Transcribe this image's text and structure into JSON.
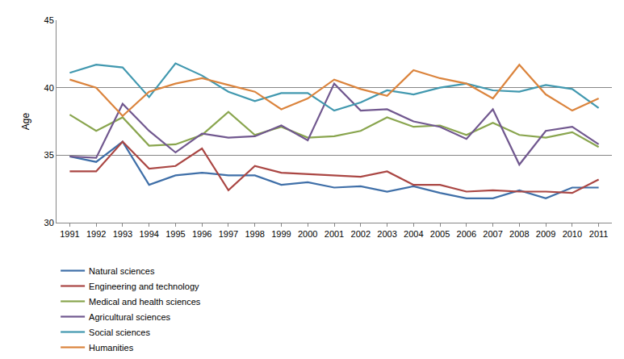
{
  "chart_data": {
    "type": "line",
    "y_label": "Age",
    "categories": [
      "1991",
      "1992",
      "1993",
      "1994",
      "1995",
      "1996",
      "1997",
      "1998",
      "1999",
      "2000",
      "2001",
      "2002",
      "2003",
      "2004",
      "2005",
      "2006",
      "2007",
      "2008",
      "2009",
      "2010",
      "2011"
    ],
    "series": [
      {
        "name": "Natural sciences",
        "color": "#3f6fa8",
        "values": [
          34.9,
          34.5,
          36.0,
          32.8,
          33.5,
          33.7,
          33.5,
          33.5,
          32.8,
          33.0,
          32.6,
          32.7,
          32.3,
          32.7,
          32.2,
          31.8,
          31.8,
          32.4,
          31.8,
          32.6,
          32.6
        ]
      },
      {
        "name": "Engineering and technology",
        "color": "#aa4643",
        "values": [
          33.8,
          33.8,
          36.0,
          34.0,
          34.2,
          35.5,
          32.4,
          34.2,
          33.7,
          33.6,
          33.5,
          33.4,
          33.8,
          32.8,
          32.8,
          32.3,
          32.4,
          32.3,
          32.3,
          32.2,
          33.2
        ]
      },
      {
        "name": "Medical and health sciences",
        "color": "#89a54e",
        "values": [
          38.0,
          36.8,
          37.8,
          35.7,
          35.8,
          36.5,
          38.2,
          36.5,
          37.1,
          36.3,
          36.4,
          36.8,
          37.8,
          37.1,
          37.2,
          36.5,
          37.4,
          36.5,
          36.3,
          36.7,
          35.6
        ]
      },
      {
        "name": "Agricultural sciences",
        "color": "#71588f",
        "values": [
          34.9,
          34.8,
          38.8,
          36.8,
          35.2,
          36.6,
          36.3,
          36.4,
          37.2,
          36.1,
          40.3,
          38.3,
          38.4,
          37.5,
          37.1,
          36.2,
          38.4,
          34.3,
          36.8,
          37.1,
          35.8
        ]
      },
      {
        "name": "Social sciences",
        "color": "#4198af",
        "values": [
          41.1,
          41.7,
          41.5,
          39.3,
          41.8,
          40.9,
          39.7,
          39.0,
          39.6,
          39.6,
          38.3,
          38.9,
          39.8,
          39.5,
          40.0,
          40.3,
          39.8,
          39.7,
          40.2,
          39.9,
          38.5
        ]
      },
      {
        "name": "Humanities",
        "color": "#db843d",
        "values": [
          40.6,
          40.0,
          37.9,
          39.7,
          40.3,
          40.7,
          40.2,
          39.7,
          38.4,
          39.2,
          40.6,
          39.9,
          39.4,
          41.3,
          40.7,
          40.3,
          39.2,
          41.7,
          39.5,
          38.3,
          39.2
        ]
      }
    ],
    "ylim": [
      30,
      45
    ],
    "yticks": [
      30,
      35,
      40,
      45
    ],
    "grid": true,
    "legend": "bottom"
  }
}
